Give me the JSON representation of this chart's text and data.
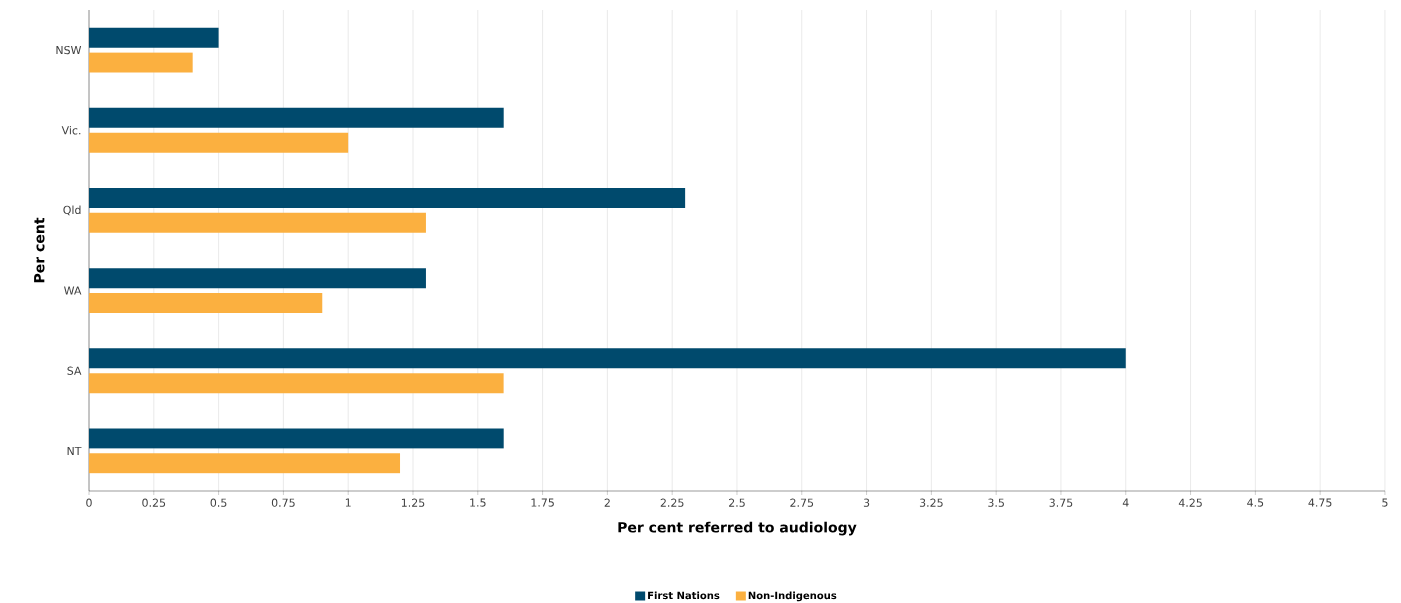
{
  "chart_data": {
    "type": "bar",
    "orientation": "horizontal",
    "xlabel": "Per cent referred to audiology",
    "ylabel": "Per cent",
    "categories": [
      "NSW",
      "Vic.",
      "Qld",
      "WA",
      "SA",
      "NT"
    ],
    "series": [
      {
        "name": "First Nations",
        "color": "#004a6d",
        "values": [
          0.5,
          1.6,
          2.3,
          1.3,
          4.0,
          1.6
        ]
      },
      {
        "name": "Non-Indigenous",
        "color": "#fbb040",
        "values": [
          0.4,
          1.0,
          1.3,
          0.9,
          1.6,
          1.2
        ]
      }
    ],
    "xlim": [
      0,
      5
    ],
    "xticks": [
      0,
      0.25,
      0.5,
      0.75,
      1,
      1.25,
      1.5,
      1.75,
      2,
      2.25,
      2.5,
      2.75,
      3,
      3.25,
      3.5,
      3.75,
      4,
      4.25,
      4.5,
      4.75,
      5
    ],
    "grid": "x",
    "legend": "bottom"
  }
}
